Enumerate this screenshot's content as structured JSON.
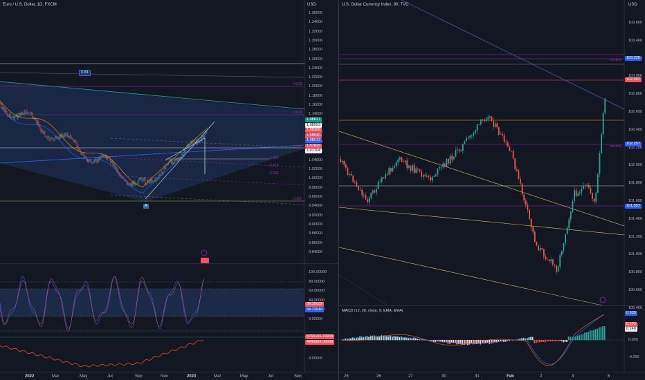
{
  "left": {
    "title": "Euro / U.S. Dollar, 1D, FXCM",
    "currency": "USD",
    "price_ticks": [
      "1.36000",
      "1.34000",
      "1.32000",
      "1.30000",
      "1.28000",
      "1.26000",
      "1.24000",
      "1.22000",
      "1.20000",
      "1.18000",
      "1.16000",
      "1.14000",
      "1.12000",
      "1.10000",
      "1.08000",
      "1.06000",
      "1.04000",
      "1.02000",
      "1.00000",
      "0.98000",
      "0.96000",
      "0.94000",
      "0.92000",
      "0.90000",
      "0.88000",
      "0.86000",
      "0.84000"
    ],
    "price_tags": [
      {
        "text": "1.08817",
        "color": "#089981"
      },
      {
        "text": "1.08553",
        "color": "#f0f3fa"
      },
      {
        "text": "1.08366",
        "color": "#f7525f"
      },
      {
        "text": "1.08540",
        "color": "#f7525f"
      },
      {
        "text": "1.08012",
        "color": "#2962ff"
      },
      {
        "text": "1.07825",
        "color": "#f7525f"
      },
      {
        "text": "1.07704",
        "color": "#f0f3fa"
      }
    ],
    "fib_labels": [
      "0.618",
      "0.618",
      "0.382",
      "0.618",
      "0.382",
      "0.236",
      "0.382"
    ],
    "wave_label": "0.84",
    "point_label": "A",
    "stoch_ticks": [
      "100.00000",
      "80.00000",
      "60.00000",
      "40.00000",
      "20.00000",
      "0.00000"
    ],
    "stoch_tags": [
      {
        "text": "36.35032",
        "color": "#f7525f"
      },
      {
        "text": "34.72918",
        "color": "#2962ff"
      }
    ],
    "osc_ticks": [
      "0.00000"
    ],
    "osc_tags": [
      {
        "text": "4759165.70000",
        "color": "#f7525f"
      },
      {
        "text": "4445884.00000",
        "color": "#f7525f"
      }
    ],
    "x_ticks": [
      {
        "text": "2022",
        "bold": true
      },
      {
        "text": "Mar",
        "bold": false
      },
      {
        "text": "May",
        "bold": false
      },
      {
        "text": "Jul",
        "bold": false
      },
      {
        "text": "Sep",
        "bold": false
      },
      {
        "text": "Nov",
        "bold": false
      },
      {
        "text": "2023",
        "bold": true
      },
      {
        "text": "Mar",
        "bold": false
      },
      {
        "text": "May",
        "bold": false
      },
      {
        "text": "Jul",
        "bold": false
      },
      {
        "text": "Sep",
        "bold": false
      }
    ]
  },
  "right": {
    "title": "U.S. Dollar Currency Index, 90, TVC",
    "currency": "USD",
    "price_ticks": [
      "103.600",
      "103.400",
      "103.200",
      "103.000",
      "102.800",
      "102.600",
      "102.400",
      "102.200",
      "102.000",
      "101.800",
      "101.600",
      "101.400",
      "101.200",
      "101.000",
      "100.800",
      "100.600",
      "100.400"
    ],
    "price_tags": [
      {
        "text": "103.225",
        "color": "#2962ff"
      },
      {
        "text": "102.992",
        "color": "#f7525f"
      },
      {
        "text": "102.257",
        "color": "#2962ff"
      },
      {
        "text": "101.557",
        "color": "#2962ff"
      }
    ],
    "level_labels": [
      "monthly",
      "monthly"
    ],
    "macd_title": "MACD (12, 26, close, 9, EMA, EMA)",
    "macd_ticks": [
      "0.200",
      "0.000",
      "-0.200"
    ],
    "macd_tags": [
      {
        "text": "0.335",
        "color": "#2962ff"
      },
      {
        "text": "0.195",
        "color": "#f7525f"
      },
      {
        "text": "0.140",
        "color": "#f0f3fa"
      }
    ],
    "x_ticks": [
      {
        "text": "25",
        "bold": false
      },
      {
        "text": "26",
        "bold": false
      },
      {
        "text": "27",
        "bold": false
      },
      {
        "text": "30",
        "bold": false
      },
      {
        "text": "31",
        "bold": false
      },
      {
        "text": "Feb",
        "bold": true
      },
      {
        "text": "2",
        "bold": false
      },
      {
        "text": "3",
        "bold": false
      },
      {
        "text": "6",
        "bold": false
      }
    ]
  }
}
